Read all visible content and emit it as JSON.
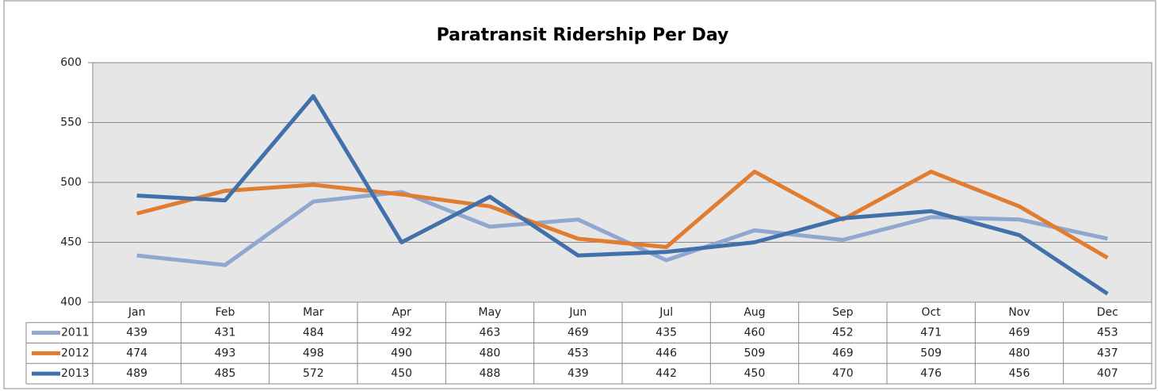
{
  "chart_data": {
    "type": "line",
    "title": "Paratransit Ridership Per Day",
    "categories": [
      "Jan",
      "Feb",
      "Mar",
      "Apr",
      "May",
      "Jun",
      "Jul",
      "Aug",
      "Sep",
      "Oct",
      "Nov",
      "Dec"
    ],
    "series": [
      {
        "name": "2011",
        "color": "#8fa7d1",
        "values": [
          439,
          431,
          484,
          492,
          463,
          469,
          435,
          460,
          452,
          471,
          469,
          453
        ]
      },
      {
        "name": "2012",
        "color": "#e17d31",
        "values": [
          474,
          493,
          498,
          490,
          480,
          453,
          446,
          509,
          469,
          509,
          480,
          437
        ]
      },
      {
        "name": "2013",
        "color": "#4170aa",
        "values": [
          489,
          485,
          572,
          450,
          488,
          439,
          442,
          450,
          470,
          476,
          456,
          407
        ]
      }
    ],
    "ylim": [
      400,
      600
    ],
    "yticks": [
      400,
      450,
      500,
      550,
      600
    ],
    "grid": true,
    "data_table": true
  }
}
